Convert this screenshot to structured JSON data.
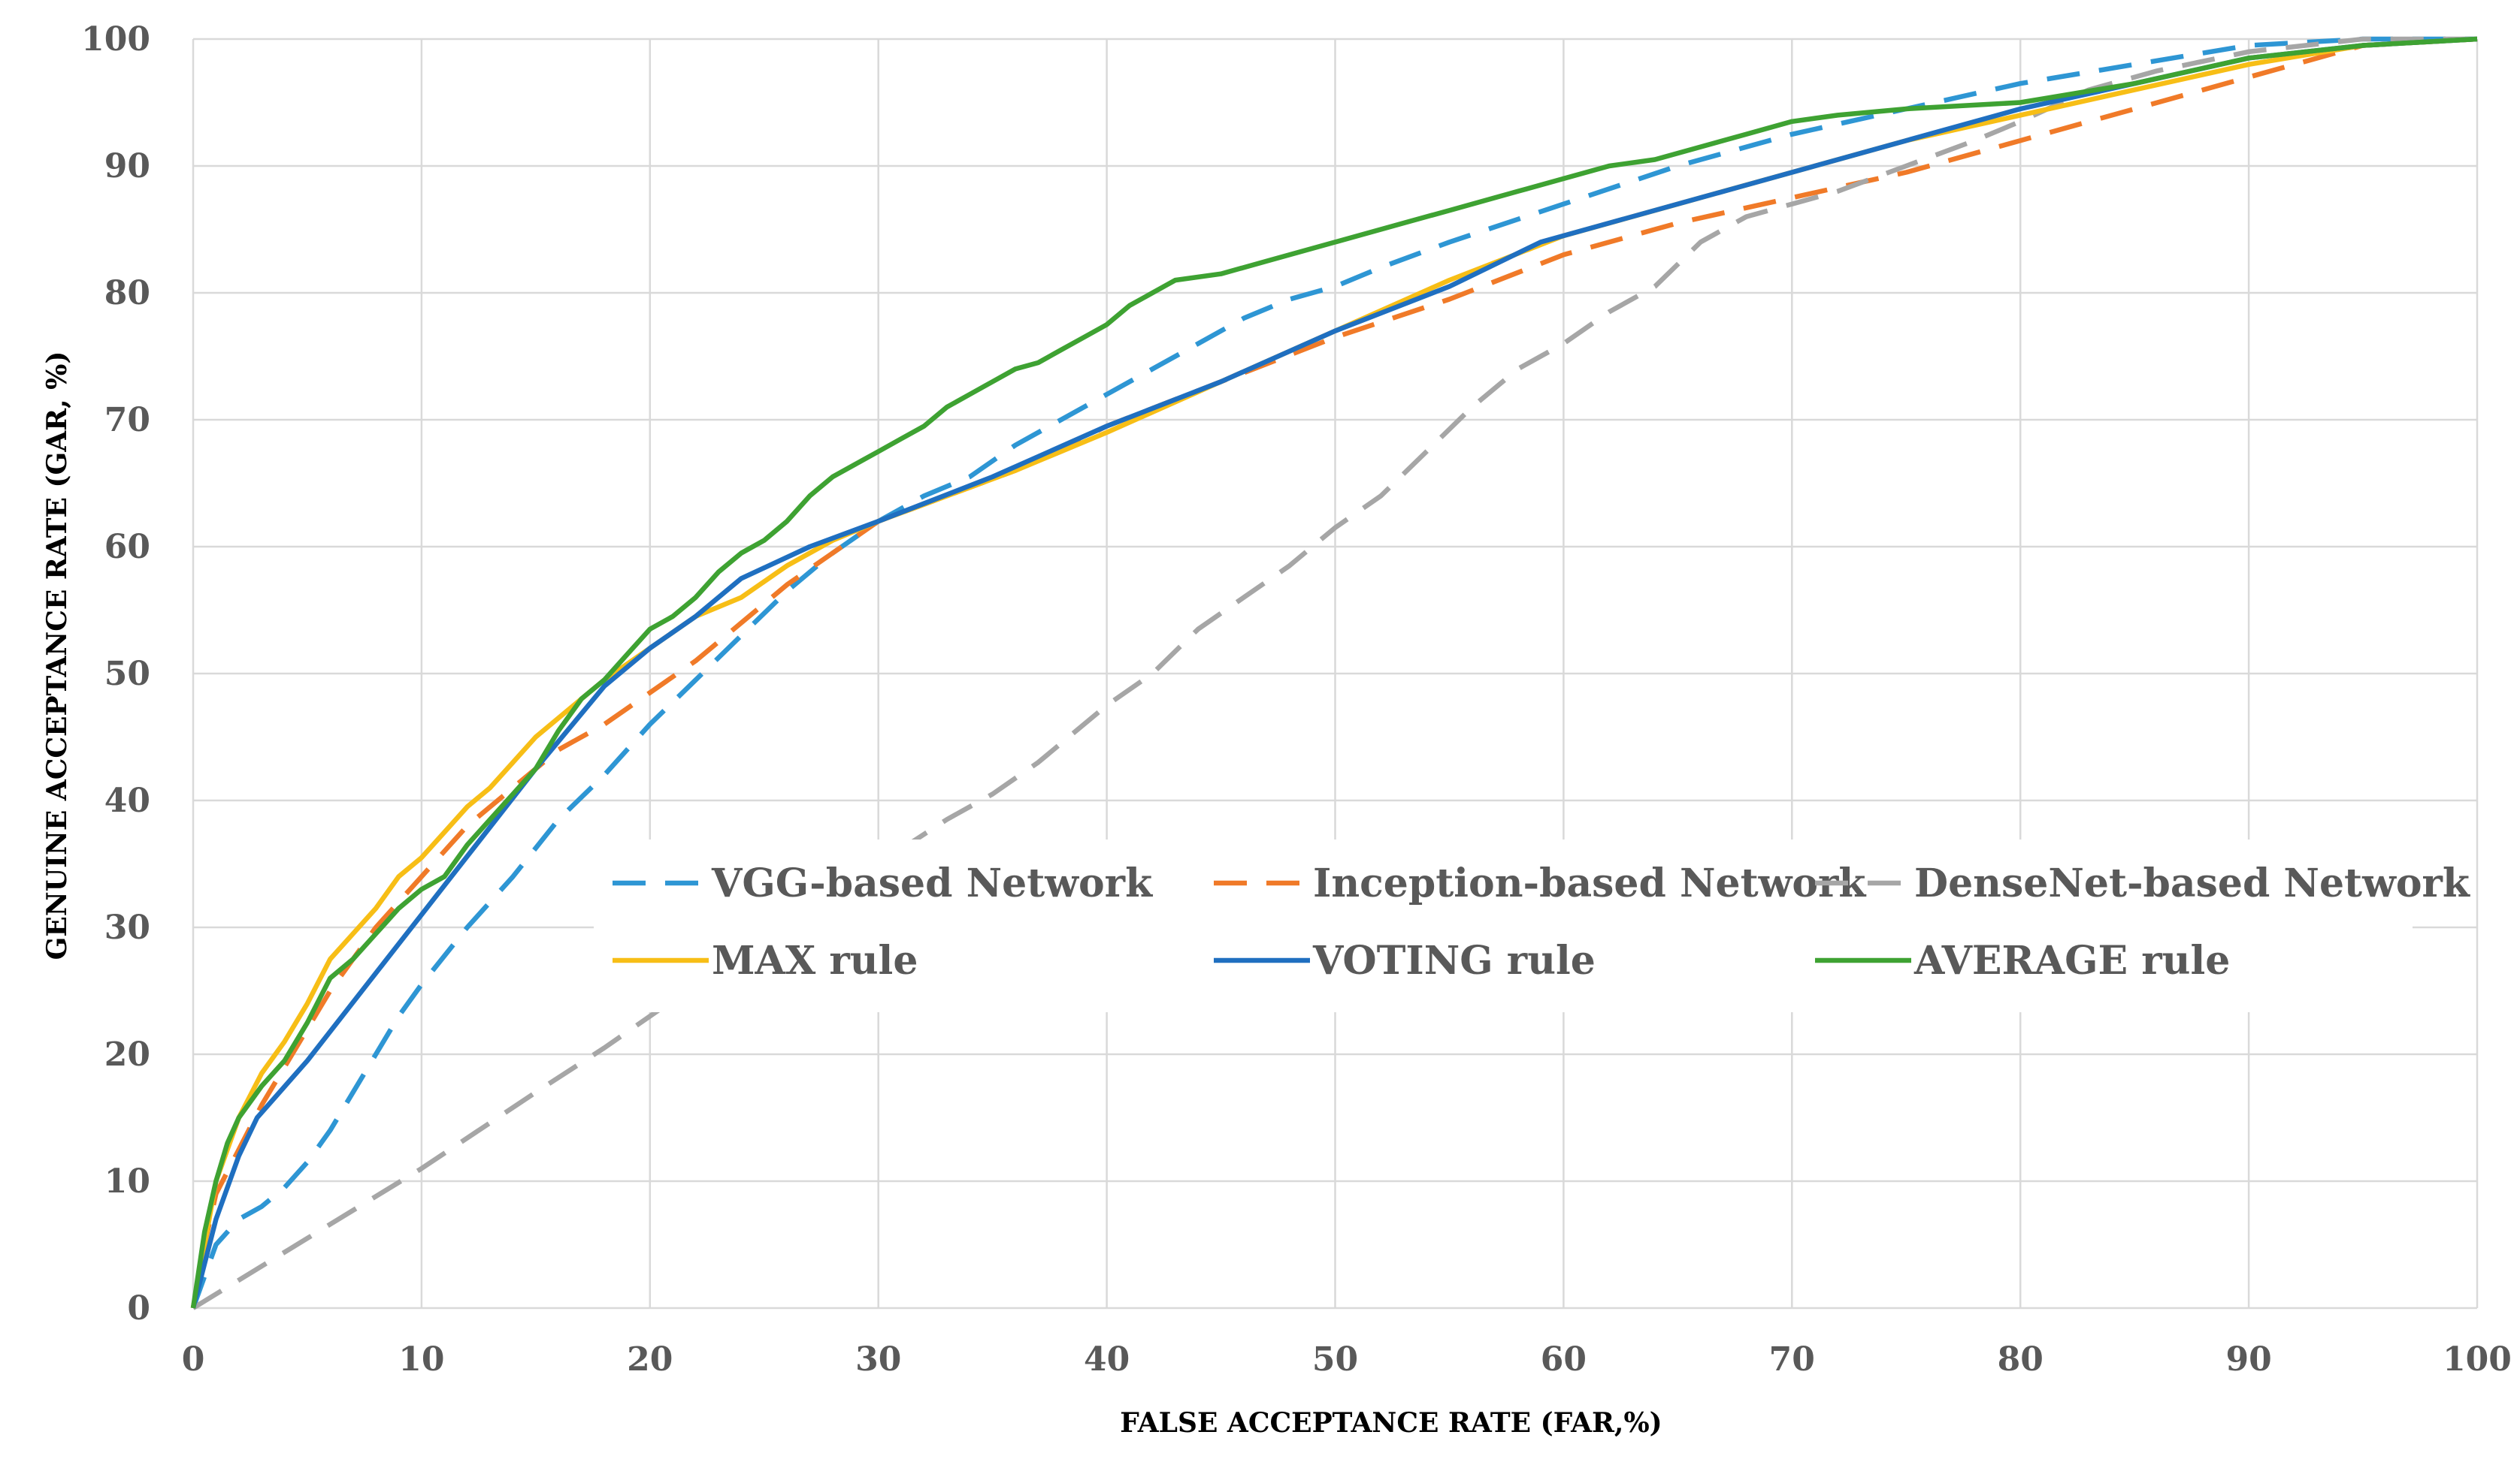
{
  "chart_data": {
    "type": "line",
    "title": "",
    "xlabel": "FALSE ACCEPTANCE RATE (FAR,%)",
    "ylabel": "GENUINE ACCEPTANCE RATE (GAR, %)",
    "xlim": [
      0,
      100
    ],
    "ylim": [
      0,
      100
    ],
    "xticks": [
      0,
      10,
      20,
      30,
      40,
      50,
      60,
      70,
      80,
      90,
      100
    ],
    "yticks": [
      0,
      10,
      20,
      30,
      40,
      50,
      60,
      70,
      80,
      90,
      100
    ],
    "grid": true,
    "legend_position": "center-right",
    "series": [
      {
        "name": "VGG-based Network",
        "color": "#2e96d4",
        "dash": "dashed",
        "points": [
          [
            0,
            0
          ],
          [
            1,
            5
          ],
          [
            2,
            7
          ],
          [
            3,
            8
          ],
          [
            4,
            9.5
          ],
          [
            5,
            11.5
          ],
          [
            6,
            14
          ],
          [
            7,
            17
          ],
          [
            8,
            20
          ],
          [
            9,
            23
          ],
          [
            10,
            25.5
          ],
          [
            12,
            30
          ],
          [
            14,
            34
          ],
          [
            16,
            38.5
          ],
          [
            18,
            42
          ],
          [
            20,
            46
          ],
          [
            22,
            49.5
          ],
          [
            24,
            53
          ],
          [
            26,
            56.5
          ],
          [
            28,
            59.5
          ],
          [
            30,
            62
          ],
          [
            32,
            64
          ],
          [
            34,
            65.5
          ],
          [
            36,
            68
          ],
          [
            38,
            70
          ],
          [
            40,
            72
          ],
          [
            42,
            74
          ],
          [
            44,
            76
          ],
          [
            46,
            78
          ],
          [
            48,
            79.5
          ],
          [
            50,
            80.5
          ],
          [
            52,
            82
          ],
          [
            55,
            84
          ],
          [
            60,
            87
          ],
          [
            65,
            90
          ],
          [
            70,
            92.5
          ],
          [
            75,
            94.5
          ],
          [
            80,
            96.5
          ],
          [
            85,
            98
          ],
          [
            90,
            99.5
          ],
          [
            95,
            100
          ],
          [
            100,
            100
          ]
        ]
      },
      {
        "name": "Inception-based Network",
        "color": "#f07a28",
        "dash": "dashed",
        "points": [
          [
            0,
            0
          ],
          [
            0.5,
            5
          ],
          [
            1,
            9
          ],
          [
            2,
            12.5
          ],
          [
            3,
            16
          ],
          [
            4,
            19
          ],
          [
            5,
            22
          ],
          [
            6,
            25
          ],
          [
            7,
            27.5
          ],
          [
            8,
            30
          ],
          [
            10,
            34
          ],
          [
            12,
            38
          ],
          [
            14,
            41
          ],
          [
            16,
            44
          ],
          [
            18,
            46
          ],
          [
            20,
            48.5
          ],
          [
            22,
            51
          ],
          [
            24,
            54
          ],
          [
            26,
            57
          ],
          [
            28,
            59.5
          ],
          [
            30,
            62
          ],
          [
            33,
            64
          ],
          [
            36,
            66
          ],
          [
            40,
            69.5
          ],
          [
            45,
            73
          ],
          [
            50,
            76.5
          ],
          [
            55,
            79.5
          ],
          [
            60,
            83
          ],
          [
            65,
            85.5
          ],
          [
            70,
            87.5
          ],
          [
            75,
            89.5
          ],
          [
            80,
            92
          ],
          [
            85,
            94.5
          ],
          [
            90,
            97
          ],
          [
            95,
            99.5
          ],
          [
            100,
            100
          ]
        ]
      },
      {
        "name": "DenseNet-based Network",
        "color": "#a6a6a6",
        "dash": "dashed",
        "points": [
          [
            0,
            0
          ],
          [
            5,
            5.5
          ],
          [
            10,
            11
          ],
          [
            15,
            17
          ],
          [
            18,
            20.5
          ],
          [
            20,
            23
          ],
          [
            22,
            25.5
          ],
          [
            25,
            29
          ],
          [
            28,
            33
          ],
          [
            30,
            35
          ],
          [
            33,
            38.5
          ],
          [
            35,
            40.5
          ],
          [
            37,
            43
          ],
          [
            40,
            47.5
          ],
          [
            42,
            50
          ],
          [
            44,
            53.5
          ],
          [
            46,
            56
          ],
          [
            48,
            58.5
          ],
          [
            50,
            61.5
          ],
          [
            52,
            64
          ],
          [
            54,
            67.5
          ],
          [
            56,
            71
          ],
          [
            58,
            74
          ],
          [
            60,
            76
          ],
          [
            62,
            78.5
          ],
          [
            64,
            80.5
          ],
          [
            66,
            84
          ],
          [
            68,
            86
          ],
          [
            70,
            87
          ],
          [
            72,
            88
          ],
          [
            75,
            90
          ],
          [
            78,
            92
          ],
          [
            80,
            93.5
          ],
          [
            83,
            96
          ],
          [
            86,
            97.5
          ],
          [
            90,
            99
          ],
          [
            95,
            100
          ],
          [
            100,
            100
          ]
        ]
      },
      {
        "name": "MAX rule",
        "color": "#f7be16",
        "dash": "solid",
        "points": [
          [
            0,
            0
          ],
          [
            0.5,
            5
          ],
          [
            1,
            10
          ],
          [
            2,
            15
          ],
          [
            3,
            18.5
          ],
          [
            4,
            21
          ],
          [
            5,
            24
          ],
          [
            6,
            27.5
          ],
          [
            7,
            29.5
          ],
          [
            8,
            31.5
          ],
          [
            9,
            34
          ],
          [
            10,
            35.5
          ],
          [
            11,
            37.5
          ],
          [
            12,
            39.5
          ],
          [
            13,
            41
          ],
          [
            14,
            43
          ],
          [
            15,
            45
          ],
          [
            16,
            46.5
          ],
          [
            17,
            48
          ],
          [
            18,
            49.5
          ],
          [
            20,
            52
          ],
          [
            22,
            54.5
          ],
          [
            24,
            56
          ],
          [
            26,
            58.5
          ],
          [
            28,
            60.5
          ],
          [
            30,
            62
          ],
          [
            33,
            64
          ],
          [
            36,
            66
          ],
          [
            40,
            69
          ],
          [
            45,
            73
          ],
          [
            50,
            77
          ],
          [
            55,
            81
          ],
          [
            60,
            84.5
          ],
          [
            65,
            87
          ],
          [
            70,
            89.5
          ],
          [
            75,
            92
          ],
          [
            80,
            94
          ],
          [
            85,
            96
          ],
          [
            90,
            98
          ],
          [
            95,
            99.5
          ],
          [
            100,
            100
          ]
        ]
      },
      {
        "name": "VOTING rule",
        "color": "#1f6fc0",
        "dash": "solid",
        "points": [
          [
            0,
            0
          ],
          [
            1,
            7
          ],
          [
            2,
            12
          ],
          [
            2.8,
            15
          ],
          [
            5,
            19.5
          ],
          [
            10,
            31
          ],
          [
            15,
            42.5
          ],
          [
            18,
            49
          ],
          [
            20,
            52
          ],
          [
            22,
            54.5
          ],
          [
            24,
            57.5
          ],
          [
            27,
            60
          ],
          [
            30,
            62
          ],
          [
            35,
            65.5
          ],
          [
            40,
            69.5
          ],
          [
            45,
            73
          ],
          [
            50,
            77
          ],
          [
            55,
            80.5
          ],
          [
            59,
            84
          ],
          [
            62,
            85.5
          ],
          [
            66,
            87.5
          ],
          [
            70,
            89.5
          ],
          [
            75,
            92
          ],
          [
            80,
            94.5
          ],
          [
            85,
            96.5
          ],
          [
            90,
            98.5
          ],
          [
            95,
            99.5
          ],
          [
            100,
            100
          ]
        ]
      },
      {
        "name": "AVERAGE rule",
        "color": "#3ea232",
        "dash": "solid",
        "points": [
          [
            0,
            0
          ],
          [
            0.5,
            6
          ],
          [
            1,
            10
          ],
          [
            1.5,
            13
          ],
          [
            2,
            15
          ],
          [
            3,
            17.5
          ],
          [
            4,
            19.5
          ],
          [
            5,
            22.5
          ],
          [
            6,
            26
          ],
          [
            7,
            27.5
          ],
          [
            8,
            29.5
          ],
          [
            9,
            31.5
          ],
          [
            10,
            33
          ],
          [
            11,
            34
          ],
          [
            12,
            36.5
          ],
          [
            13,
            38.5
          ],
          [
            14,
            40.5
          ],
          [
            15,
            42.5
          ],
          [
            16,
            45.5
          ],
          [
            17,
            48
          ],
          [
            18,
            49.5
          ],
          [
            19,
            51.5
          ],
          [
            20,
            53.5
          ],
          [
            21,
            54.5
          ],
          [
            22,
            56
          ],
          [
            23,
            58
          ],
          [
            24,
            59.5
          ],
          [
            25,
            60.5
          ],
          [
            26,
            62
          ],
          [
            27,
            64
          ],
          [
            28,
            65.5
          ],
          [
            29,
            66.5
          ],
          [
            30,
            67.5
          ],
          [
            31,
            68.5
          ],
          [
            32,
            69.5
          ],
          [
            33,
            71
          ],
          [
            34,
            72
          ],
          [
            35,
            73
          ],
          [
            36,
            74
          ],
          [
            37,
            74.5
          ],
          [
            38,
            75.5
          ],
          [
            39,
            76.5
          ],
          [
            40,
            77.5
          ],
          [
            41,
            79
          ],
          [
            42,
            80
          ],
          [
            43,
            81
          ],
          [
            45,
            81.5
          ],
          [
            47,
            82.5
          ],
          [
            50,
            84
          ],
          [
            53,
            85.5
          ],
          [
            55,
            86.5
          ],
          [
            57,
            87.5
          ],
          [
            58,
            88
          ],
          [
            60,
            89
          ],
          [
            62,
            90
          ],
          [
            64,
            90.5
          ],
          [
            66,
            91.5
          ],
          [
            68,
            92.5
          ],
          [
            70,
            93.5
          ],
          [
            72,
            94
          ],
          [
            75,
            94.5
          ],
          [
            80,
            95
          ],
          [
            85,
            96.5
          ],
          [
            90,
            98.5
          ],
          [
            95,
            99.5
          ],
          [
            100,
            100
          ]
        ]
      }
    ]
  }
}
